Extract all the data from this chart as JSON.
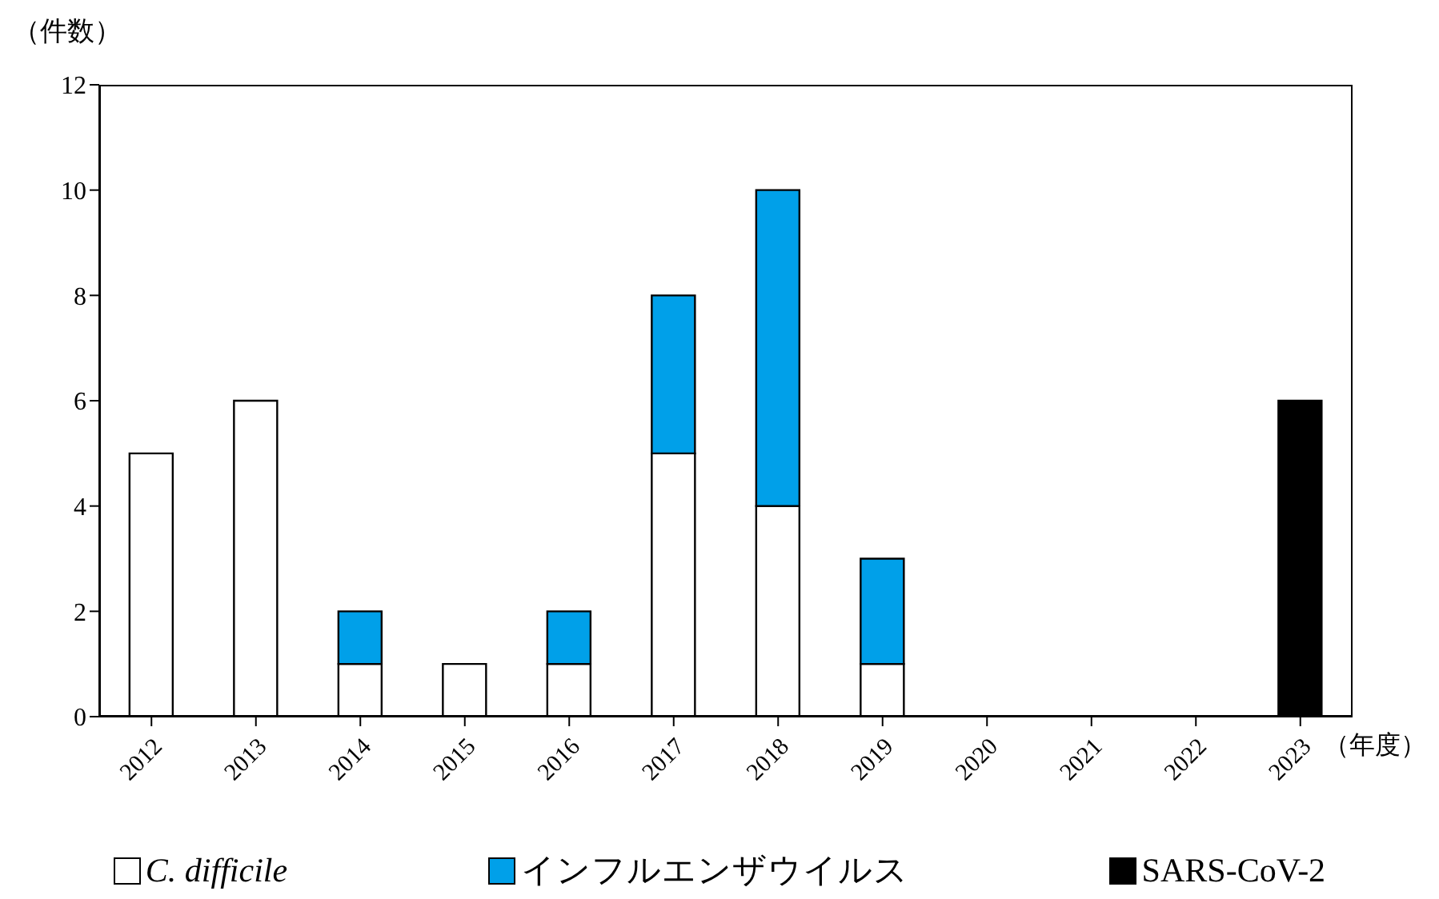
{
  "chart_data": {
    "type": "bar",
    "stacked": true,
    "ylabel": "（件数）",
    "xlabel": "（年度）",
    "categories": [
      "2012",
      "2013",
      "2014",
      "2015",
      "2016",
      "2017",
      "2018",
      "2019",
      "2020",
      "2021",
      "2022",
      "2023"
    ],
    "series": [
      {
        "name": "C. difficile",
        "color": "#ffffff",
        "values": [
          5,
          6,
          1,
          1,
          1,
          5,
          4,
          1,
          0,
          0,
          0,
          0
        ]
      },
      {
        "name": "インフルエンザウイルス",
        "color": "#00a0e9",
        "values": [
          0,
          0,
          1,
          0,
          1,
          3,
          6,
          2,
          0,
          0,
          0,
          0
        ]
      },
      {
        "name": "SARS-CoV-2",
        "color": "#000000",
        "values": [
          0,
          0,
          0,
          0,
          0,
          0,
          0,
          0,
          0,
          0,
          0,
          6
        ]
      }
    ],
    "ylim": [
      0,
      12
    ],
    "yticks": [
      0,
      2,
      4,
      6,
      8,
      10,
      12
    ],
    "grid": false,
    "legend": "bottom"
  }
}
